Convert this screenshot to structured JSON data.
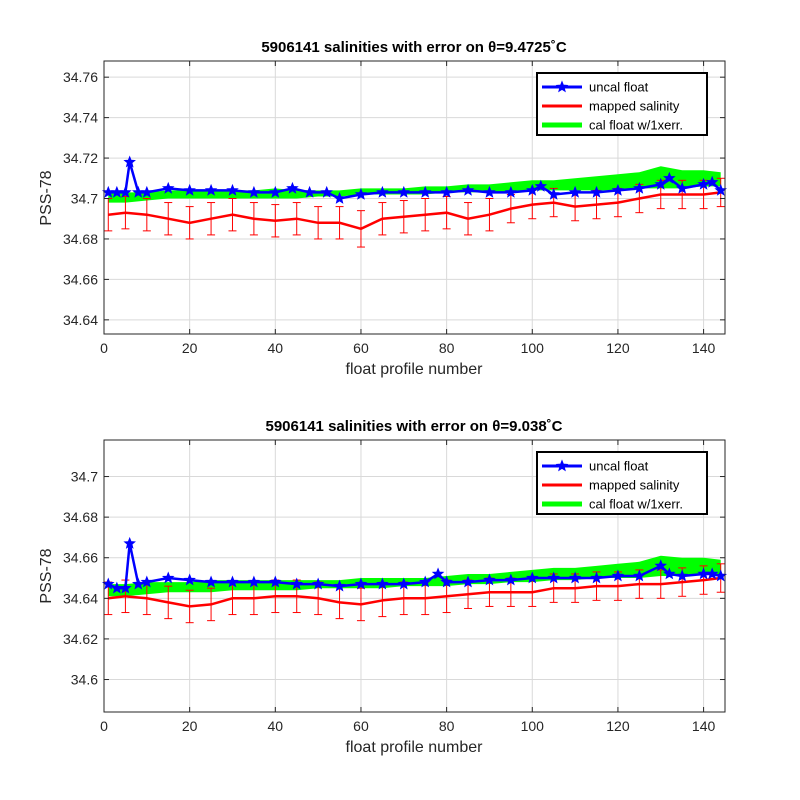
{
  "chart_data": [
    {
      "type": "line",
      "title": "5906141 salinities with error on θ=9.4725˚C",
      "xlabel": "float profile number",
      "ylabel": "PSS-78",
      "xlim": [
        0,
        145
      ],
      "ylim": [
        34.633,
        34.768
      ],
      "xticks": [
        0,
        20,
        40,
        60,
        80,
        100,
        120,
        140
      ],
      "xtick_labels": [
        "0",
        "20",
        "40",
        "60",
        "80",
        "100",
        "120",
        "140"
      ],
      "yticks": [
        34.64,
        34.66,
        34.68,
        34.7,
        34.72,
        34.74,
        34.76
      ],
      "ytick_labels": [
        "34.64",
        "34.66",
        "34.68",
        "34.7",
        "34.72",
        "34.74",
        "34.76"
      ],
      "grid": true,
      "legend_position": "top-right",
      "series": [
        {
          "name": "uncal float",
          "color": "#0000ff",
          "marker": "star",
          "values": "uncal"
        },
        {
          "name": "mapped salinity",
          "color": "#ff0000",
          "error_bars": true,
          "values": "mapped"
        },
        {
          "name": "cal float w/1xerr.",
          "color": "#00ff00",
          "fill": true,
          "values": "band"
        }
      ],
      "uncal": {
        "x": [
          1,
          3,
          5,
          6,
          8,
          10,
          15,
          20,
          25,
          30,
          35,
          40,
          44,
          48,
          52,
          55,
          60,
          65,
          70,
          75,
          80,
          85,
          90,
          95,
          100,
          102,
          105,
          110,
          115,
          120,
          125,
          130,
          132,
          135,
          140,
          142,
          144
        ],
        "y": [
          34.703,
          34.703,
          34.703,
          34.718,
          34.703,
          34.703,
          34.705,
          34.704,
          34.704,
          34.704,
          34.703,
          34.703,
          34.705,
          34.703,
          34.703,
          34.7,
          34.702,
          34.703,
          34.703,
          34.703,
          34.703,
          34.704,
          34.703,
          34.703,
          34.704,
          34.706,
          34.702,
          34.703,
          34.703,
          34.704,
          34.705,
          34.707,
          34.71,
          34.705,
          34.707,
          34.708,
          34.704
        ]
      },
      "mapped": {
        "x": [
          1,
          5,
          10,
          15,
          20,
          25,
          30,
          35,
          40,
          45,
          50,
          55,
          60,
          65,
          70,
          75,
          80,
          85,
          90,
          95,
          100,
          105,
          110,
          115,
          120,
          125,
          130,
          135,
          140,
          144
        ],
        "y": [
          34.692,
          34.693,
          34.692,
          34.69,
          34.688,
          34.69,
          34.692,
          34.69,
          34.689,
          34.69,
          34.688,
          34.688,
          34.685,
          34.69,
          34.691,
          34.692,
          34.693,
          34.69,
          34.692,
          34.695,
          34.697,
          34.698,
          34.696,
          34.697,
          34.698,
          34.7,
          34.702,
          34.702,
          34.702,
          34.703
        ],
        "err": [
          0.008,
          0.008,
          0.008,
          0.008,
          0.008,
          0.008,
          0.008,
          0.008,
          0.008,
          0.008,
          0.008,
          0.008,
          0.009,
          0.008,
          0.008,
          0.008,
          0.008,
          0.008,
          0.008,
          0.007,
          0.007,
          0.007,
          0.007,
          0.007,
          0.007,
          0.007,
          0.007,
          0.007,
          0.007,
          0.007
        ]
      },
      "band": {
        "x": [
          1,
          5,
          10,
          15,
          20,
          25,
          30,
          35,
          40,
          45,
          50,
          55,
          60,
          65,
          70,
          75,
          80,
          85,
          90,
          95,
          100,
          105,
          110,
          115,
          120,
          125,
          130,
          135,
          140,
          144
        ],
        "lower": [
          34.698,
          34.698,
          34.699,
          34.7,
          34.7,
          34.7,
          34.7,
          34.7,
          34.7,
          34.7,
          34.701,
          34.701,
          34.702,
          34.702,
          34.702,
          34.702,
          34.703,
          34.703,
          34.703,
          34.703,
          34.704,
          34.704,
          34.704,
          34.704,
          34.704,
          34.705,
          34.705,
          34.705,
          34.706,
          34.706
        ],
        "upper": [
          34.703,
          34.703,
          34.703,
          34.704,
          34.704,
          34.704,
          34.704,
          34.704,
          34.705,
          34.704,
          34.704,
          34.704,
          34.705,
          34.705,
          34.705,
          34.706,
          34.706,
          34.707,
          34.707,
          34.708,
          34.709,
          34.709,
          34.71,
          34.711,
          34.712,
          34.713,
          34.716,
          34.714,
          34.714,
          34.713
        ]
      }
    },
    {
      "type": "line",
      "title": "5906141 salinities with error on θ=9.038˚C",
      "xlabel": "float profile number",
      "ylabel": "PSS-78",
      "xlim": [
        0,
        145
      ],
      "ylim": [
        34.584,
        34.718
      ],
      "xticks": [
        0,
        20,
        40,
        60,
        80,
        100,
        120,
        140
      ],
      "xtick_labels": [
        "0",
        "20",
        "40",
        "60",
        "80",
        "100",
        "120",
        "140"
      ],
      "yticks": [
        34.6,
        34.62,
        34.64,
        34.66,
        34.68,
        34.7
      ],
      "ytick_labels": [
        "34.6",
        "34.62",
        "34.64",
        "34.66",
        "34.68",
        "34.7"
      ],
      "grid": true,
      "legend_position": "top-right",
      "series": [
        {
          "name": "uncal float",
          "color": "#0000ff",
          "marker": "star",
          "values": "uncal"
        },
        {
          "name": "mapped salinity",
          "color": "#ff0000",
          "error_bars": true,
          "values": "mapped"
        },
        {
          "name": "cal float w/1xerr.",
          "color": "#00ff00",
          "fill": true,
          "values": "band"
        }
      ],
      "uncal": {
        "x": [
          1,
          3,
          5,
          6,
          8,
          10,
          15,
          20,
          25,
          30,
          35,
          40,
          45,
          50,
          55,
          60,
          65,
          70,
          75,
          78,
          80,
          85,
          90,
          95,
          100,
          105,
          110,
          115,
          120,
          125,
          130,
          132,
          135,
          140,
          142,
          144
        ],
        "y": [
          34.647,
          34.645,
          34.645,
          34.667,
          34.647,
          34.648,
          34.65,
          34.649,
          34.648,
          34.648,
          34.648,
          34.648,
          34.647,
          34.647,
          34.646,
          34.647,
          34.647,
          34.647,
          34.648,
          34.652,
          34.648,
          34.648,
          34.649,
          34.649,
          34.65,
          34.65,
          34.65,
          34.65,
          34.651,
          34.651,
          34.656,
          34.652,
          34.651,
          34.652,
          34.652,
          34.651
        ]
      },
      "mapped": {
        "x": [
          1,
          5,
          10,
          15,
          20,
          25,
          30,
          35,
          40,
          45,
          50,
          55,
          60,
          65,
          70,
          75,
          80,
          85,
          90,
          95,
          100,
          105,
          110,
          115,
          120,
          125,
          130,
          135,
          140,
          144
        ],
        "y": [
          34.64,
          34.641,
          34.64,
          34.638,
          34.636,
          34.637,
          34.64,
          34.64,
          34.641,
          34.641,
          34.64,
          34.638,
          34.637,
          34.639,
          34.64,
          34.64,
          34.641,
          34.642,
          34.643,
          34.643,
          34.643,
          34.645,
          34.645,
          34.646,
          34.646,
          34.647,
          34.647,
          34.648,
          34.649,
          34.65
        ],
        "err": [
          0.008,
          0.008,
          0.008,
          0.008,
          0.008,
          0.008,
          0.008,
          0.008,
          0.008,
          0.008,
          0.008,
          0.008,
          0.008,
          0.008,
          0.008,
          0.008,
          0.008,
          0.007,
          0.007,
          0.007,
          0.007,
          0.007,
          0.007,
          0.007,
          0.007,
          0.007,
          0.007,
          0.007,
          0.007,
          0.007
        ]
      },
      "band": {
        "x": [
          1,
          5,
          10,
          15,
          20,
          25,
          30,
          35,
          40,
          45,
          50,
          55,
          60,
          65,
          70,
          75,
          80,
          85,
          90,
          95,
          100,
          105,
          110,
          115,
          120,
          125,
          130,
          135,
          140,
          144
        ],
        "lower": [
          34.641,
          34.641,
          34.642,
          34.643,
          34.643,
          34.643,
          34.644,
          34.644,
          34.644,
          34.644,
          34.645,
          34.645,
          34.645,
          34.645,
          34.646,
          34.646,
          34.646,
          34.647,
          34.647,
          34.648,
          34.648,
          34.649,
          34.649,
          34.65,
          34.65,
          34.65,
          34.651,
          34.651,
          34.652,
          34.652
        ],
        "upper": [
          34.647,
          34.647,
          34.648,
          34.648,
          34.648,
          34.649,
          34.649,
          34.649,
          34.649,
          34.649,
          34.649,
          34.649,
          34.65,
          34.65,
          34.65,
          34.65,
          34.651,
          34.652,
          34.652,
          34.653,
          34.654,
          34.655,
          34.655,
          34.656,
          34.657,
          34.658,
          34.661,
          34.66,
          34.66,
          34.659
        ]
      }
    }
  ]
}
